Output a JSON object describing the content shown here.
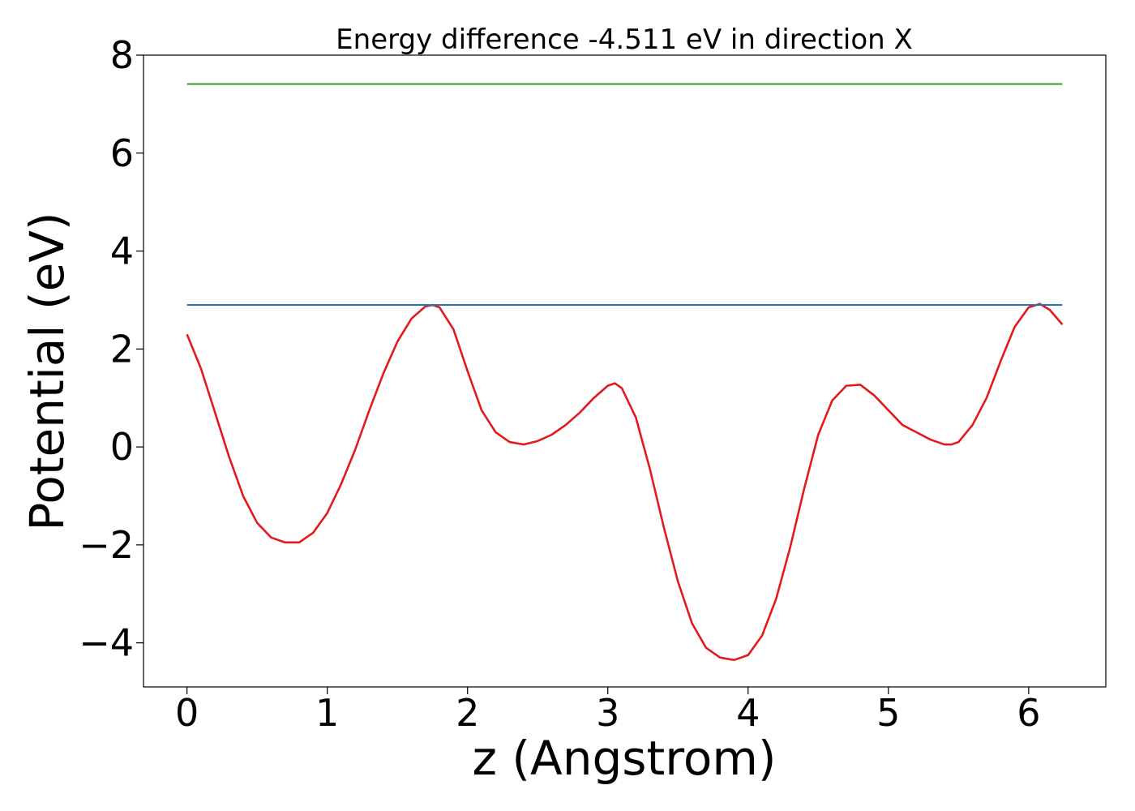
{
  "chart_data": {
    "type": "line",
    "title": "Energy difference -4.511 eV in direction X",
    "xlabel": "z (Angstrom)",
    "ylabel": "Potential (eV)",
    "xlim": [
      -0.31,
      6.55
    ],
    "ylim": [
      -4.9,
      8.0
    ],
    "x_ticks": [
      0,
      1,
      2,
      3,
      4,
      5,
      6
    ],
    "x_tick_labels": [
      "0",
      "1",
      "2",
      "3",
      "4",
      "5",
      "6"
    ],
    "y_ticks": [
      -4,
      -2,
      0,
      2,
      4,
      6,
      8
    ],
    "y_tick_labels": [
      "−4",
      "−2",
      "0",
      "2",
      "4",
      "6",
      "8"
    ],
    "grid": false,
    "series": [
      {
        "color": "#e31a1c",
        "x": [
          0.0,
          0.1,
          0.2,
          0.3,
          0.4,
          0.5,
          0.6,
          0.7,
          0.8,
          0.9,
          1.0,
          1.1,
          1.2,
          1.3,
          1.4,
          1.5,
          1.6,
          1.7,
          1.75,
          1.8,
          1.9,
          2.0,
          2.1,
          2.2,
          2.3,
          2.4,
          2.5,
          2.6,
          2.7,
          2.8,
          2.9,
          3.0,
          3.05,
          3.1,
          3.2,
          3.3,
          3.4,
          3.5,
          3.6,
          3.7,
          3.8,
          3.9,
          4.0,
          4.1,
          4.2,
          4.3,
          4.4,
          4.5,
          4.6,
          4.7,
          4.8,
          4.9,
          5.0,
          5.1,
          5.2,
          5.3,
          5.4,
          5.45,
          5.5,
          5.6,
          5.7,
          5.8,
          5.9,
          6.0,
          6.08,
          6.15,
          6.24
        ],
        "y": [
          2.3,
          1.6,
          0.7,
          -0.2,
          -1.0,
          -1.55,
          -1.85,
          -1.95,
          -1.95,
          -1.75,
          -1.35,
          -0.75,
          -0.05,
          0.75,
          1.5,
          2.15,
          2.62,
          2.87,
          2.9,
          2.85,
          2.4,
          1.55,
          0.75,
          0.3,
          0.1,
          0.05,
          0.12,
          0.25,
          0.45,
          0.7,
          1.0,
          1.25,
          1.3,
          1.2,
          0.6,
          -0.45,
          -1.65,
          -2.75,
          -3.6,
          -4.1,
          -4.3,
          -4.35,
          -4.25,
          -3.85,
          -3.1,
          -2.05,
          -0.85,
          0.25,
          0.95,
          1.25,
          1.27,
          1.05,
          0.75,
          0.45,
          0.3,
          0.15,
          0.05,
          0.05,
          0.1,
          0.45,
          1.0,
          1.75,
          2.45,
          2.85,
          2.92,
          2.8,
          2.5
        ]
      },
      {
        "color": "#1f77b4",
        "x": [
          0.0,
          6.24
        ],
        "y": [
          2.9,
          2.9
        ]
      },
      {
        "color": "#2ca02c",
        "x": [
          0.0,
          6.24
        ],
        "y": [
          7.41,
          7.41
        ]
      }
    ]
  }
}
